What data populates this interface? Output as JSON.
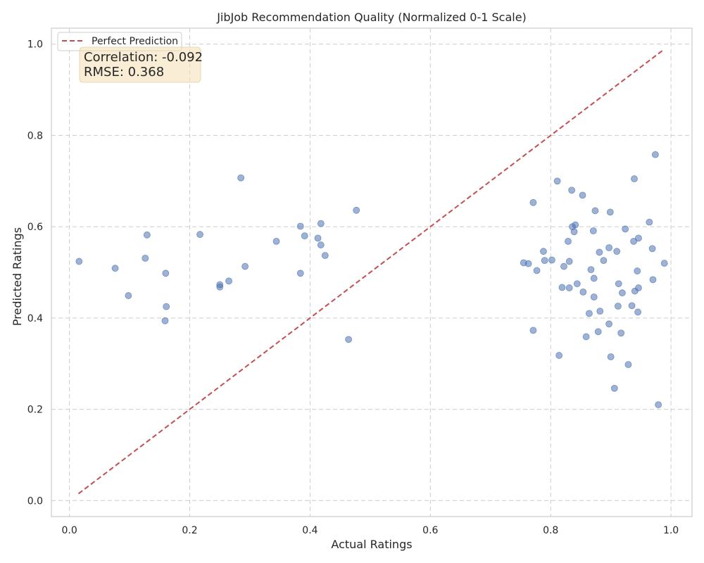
{
  "chart_data": {
    "type": "scatter",
    "title": "JibJob Recommendation Quality (Normalized 0-1 Scale)",
    "xlabel": "Actual Ratings",
    "ylabel": "Predicted Ratings",
    "xlim": [
      -0.03,
      1.035
    ],
    "ylim": [
      -0.035,
      1.035
    ],
    "xticks": [
      0.0,
      0.2,
      0.4,
      0.6,
      0.8,
      1.0
    ],
    "xtick_labels": [
      "0.0",
      "0.2",
      "0.4",
      "0.6",
      "0.8",
      "1.0"
    ],
    "yticks": [
      0.0,
      0.2,
      0.4,
      0.6,
      0.8,
      1.0
    ],
    "ytick_labels": [
      "0.0",
      "0.2",
      "0.4",
      "0.6",
      "0.8",
      "1.0"
    ],
    "grid": true,
    "legend": {
      "placement": "top-left",
      "entries": [
        {
          "label": "Perfect Prediction",
          "style": "dashed",
          "color": "#c44e52"
        }
      ]
    },
    "annotation": {
      "lines": [
        "Correlation: -0.092",
        "RMSE: 0.368"
      ],
      "placement": "top-left"
    },
    "colors": {
      "points": "#4c72b0",
      "reference": "#c44e52",
      "annotation_bg": "#f5deb3"
    },
    "reference_line": {
      "x": [
        0.015,
        0.987
      ],
      "y": [
        0.015,
        0.987
      ]
    },
    "points": [
      [
        0.016,
        0.524
      ],
      [
        0.076,
        0.509
      ],
      [
        0.098,
        0.449
      ],
      [
        0.126,
        0.531
      ],
      [
        0.129,
        0.582
      ],
      [
        0.159,
        0.394
      ],
      [
        0.16,
        0.498
      ],
      [
        0.161,
        0.425
      ],
      [
        0.217,
        0.583
      ],
      [
        0.25,
        0.473
      ],
      [
        0.25,
        0.468
      ],
      [
        0.265,
        0.481
      ],
      [
        0.285,
        0.707
      ],
      [
        0.292,
        0.513
      ],
      [
        0.344,
        0.568
      ],
      [
        0.384,
        0.601
      ],
      [
        0.384,
        0.498
      ],
      [
        0.391,
        0.58
      ],
      [
        0.413,
        0.575
      ],
      [
        0.418,
        0.607
      ],
      [
        0.418,
        0.56
      ],
      [
        0.425,
        0.537
      ],
      [
        0.464,
        0.353
      ],
      [
        0.477,
        0.636
      ],
      [
        0.755,
        0.521
      ],
      [
        0.763,
        0.519
      ],
      [
        0.771,
        0.653
      ],
      [
        0.771,
        0.373
      ],
      [
        0.777,
        0.504
      ],
      [
        0.788,
        0.546
      ],
      [
        0.79,
        0.526
      ],
      [
        0.802,
        0.527
      ],
      [
        0.811,
        0.7
      ],
      [
        0.814,
        0.318
      ],
      [
        0.819,
        0.467
      ],
      [
        0.822,
        0.513
      ],
      [
        0.829,
        0.568
      ],
      [
        0.831,
        0.524
      ],
      [
        0.831,
        0.466
      ],
      [
        0.835,
        0.68
      ],
      [
        0.836,
        0.6
      ],
      [
        0.839,
        0.589
      ],
      [
        0.841,
        0.604
      ],
      [
        0.844,
        0.475
      ],
      [
        0.853,
        0.669
      ],
      [
        0.854,
        0.457
      ],
      [
        0.859,
        0.359
      ],
      [
        0.864,
        0.41
      ],
      [
        0.867,
        0.506
      ],
      [
        0.871,
        0.591
      ],
      [
        0.872,
        0.446
      ],
      [
        0.872,
        0.487
      ],
      [
        0.874,
        0.635
      ],
      [
        0.879,
        0.37
      ],
      [
        0.881,
        0.544
      ],
      [
        0.882,
        0.415
      ],
      [
        0.888,
        0.526
      ],
      [
        0.897,
        0.554
      ],
      [
        0.897,
        0.387
      ],
      [
        0.899,
        0.632
      ],
      [
        0.9,
        0.315
      ],
      [
        0.906,
        0.246
      ],
      [
        0.91,
        0.546
      ],
      [
        0.912,
        0.426
      ],
      [
        0.913,
        0.475
      ],
      [
        0.917,
        0.367
      ],
      [
        0.919,
        0.455
      ],
      [
        0.924,
        0.595
      ],
      [
        0.929,
        0.298
      ],
      [
        0.935,
        0.427
      ],
      [
        0.938,
        0.568
      ],
      [
        0.939,
        0.705
      ],
      [
        0.94,
        0.459
      ],
      [
        0.944,
        0.503
      ],
      [
        0.945,
        0.413
      ],
      [
        0.946,
        0.575
      ],
      [
        0.946,
        0.466
      ],
      [
        0.964,
        0.61
      ],
      [
        0.969,
        0.552
      ],
      [
        0.97,
        0.484
      ],
      [
        0.974,
        0.758
      ],
      [
        0.979,
        0.21
      ],
      [
        0.989,
        0.52
      ]
    ]
  }
}
